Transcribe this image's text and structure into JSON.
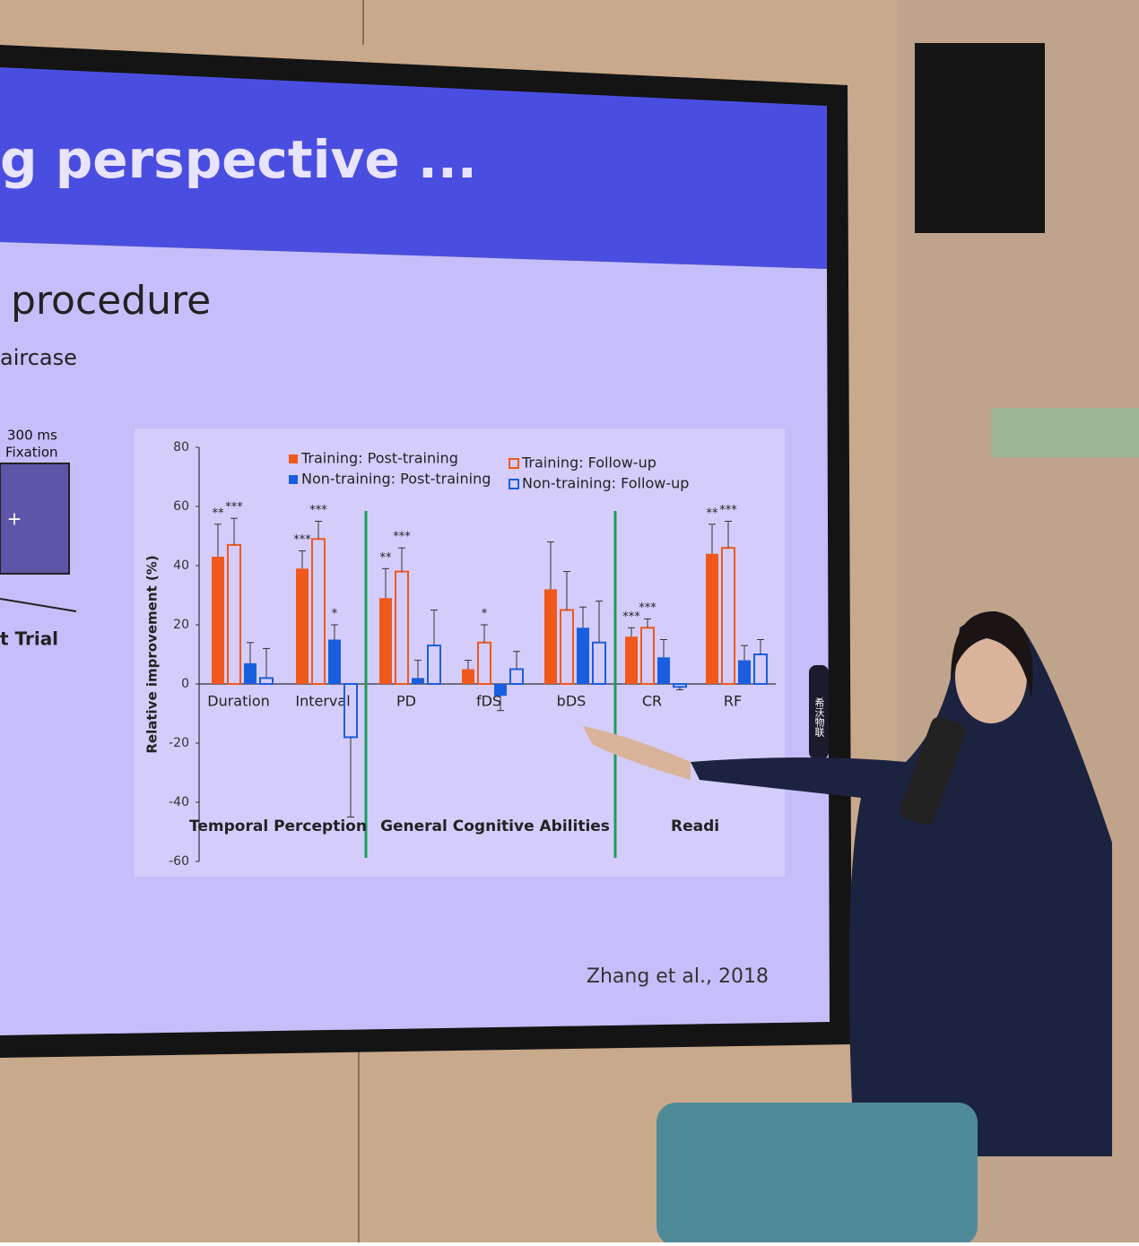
{
  "slide": {
    "title": "g perspective ...",
    "heading": "procedure",
    "subheading": "aircase",
    "fixation_time": "300 ms",
    "fixation_label": "Fixation",
    "fixation_symbol": "+",
    "trial_label": "t Trial",
    "citation": "Zhang et al., 2018",
    "badge": "希沃物联"
  },
  "chart_data": {
    "type": "bar",
    "ylabel": "Relative improvement (%)",
    "categories": [
      "Duration",
      "Interval",
      "PD",
      "fDS",
      "bDS",
      "CR",
      "RF"
    ],
    "groups": [
      "Temporal Perception",
      "General Cognitive Abilities",
      "Readi"
    ],
    "ylim": [
      -60,
      80
    ],
    "yticks": [
      -60,
      -40,
      -20,
      0,
      20,
      40,
      60,
      80
    ],
    "series": [
      {
        "name": "Training: Post-training",
        "color": "#f0581c",
        "style": "solid",
        "values": [
          43,
          39,
          29,
          5,
          32,
          16,
          44
        ],
        "errors": [
          11,
          6,
          10,
          3,
          16,
          3,
          10
        ],
        "significance": [
          "**",
          "***",
          "**",
          null,
          null,
          "***",
          "**"
        ]
      },
      {
        "name": "Training: Follow-up",
        "color": "#f0581c",
        "style": "hollow",
        "values": [
          47,
          49,
          38,
          14,
          25,
          19,
          46
        ],
        "errors": [
          9,
          6,
          8,
          6,
          13,
          3,
          9
        ],
        "significance": [
          "***",
          "***",
          "***",
          "*",
          null,
          "***",
          "***"
        ]
      },
      {
        "name": "Non-training: Post-training",
        "color": "#1a5ee0",
        "style": "solid",
        "values": [
          7,
          15,
          2,
          -4,
          19,
          9,
          8
        ],
        "errors": [
          7,
          5,
          6,
          5,
          7,
          6,
          5
        ],
        "significance": [
          null,
          "*",
          null,
          null,
          null,
          null,
          null
        ]
      },
      {
        "name": "Non-training: Follow-up",
        "color": "#1a5ee0",
        "style": "hollow",
        "values": [
          2,
          -18,
          13,
          5,
          14,
          -1,
          10
        ],
        "errors": [
          10,
          27,
          12,
          6,
          14,
          1,
          5
        ],
        "significance": [
          null,
          null,
          null,
          null,
          null,
          null,
          null
        ]
      }
    ]
  }
}
